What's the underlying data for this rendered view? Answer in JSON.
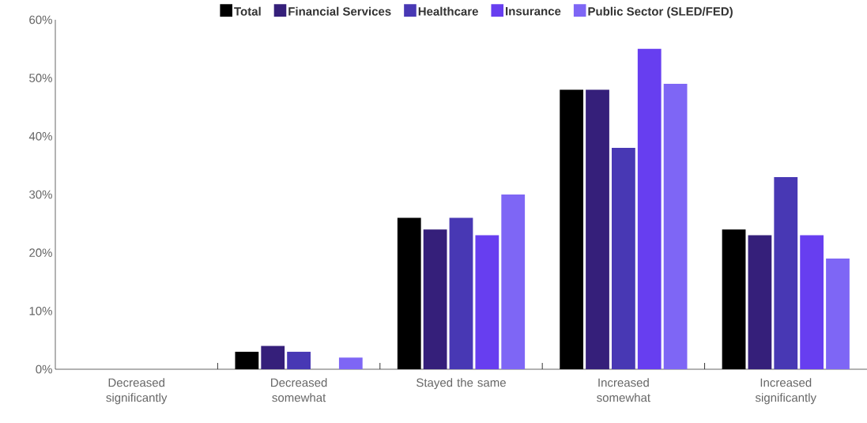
{
  "chart_data": {
    "type": "bar",
    "categories": [
      "Decreased significantly",
      "Decreased somewhat",
      "Stayed the same",
      "Increased somewhat",
      "Increased significantly"
    ],
    "series": [
      {
        "name": "Total",
        "color": "#000000",
        "values": [
          0,
          3,
          26,
          48,
          24
        ]
      },
      {
        "name": "Financial Services",
        "color": "#351f7a",
        "values": [
          0,
          4,
          24,
          48,
          23
        ]
      },
      {
        "name": "Healthcare",
        "color": "#4838b4",
        "values": [
          0,
          3,
          26,
          38,
          33
        ]
      },
      {
        "name": "Insurance",
        "color": "#673ef0",
        "values": [
          0,
          0,
          23,
          55,
          23
        ]
      },
      {
        "name": "Public Sector (SLED/FED)",
        "color": "#7e66f5",
        "values": [
          0,
          2,
          30,
          49,
          19
        ]
      }
    ],
    "ylim": [
      0,
      60
    ],
    "yticks": [
      {
        "value": 0,
        "label": "0%"
      },
      {
        "value": 10,
        "label": "10%"
      },
      {
        "value": 20,
        "label": "20%"
      },
      {
        "value": 30,
        "label": "30%"
      },
      {
        "value": 40,
        "label": "40%"
      },
      {
        "value": 50,
        "label": "50%"
      },
      {
        "value": 60,
        "label": "60%"
      }
    ],
    "grid": false,
    "legend": "top"
  }
}
